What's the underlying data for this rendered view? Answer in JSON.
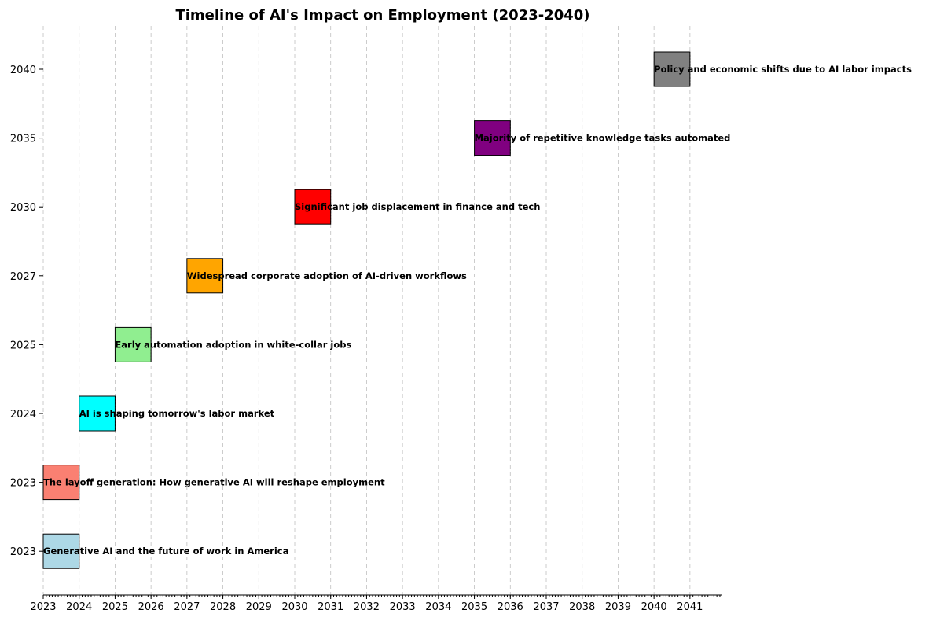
{
  "chart_data": {
    "type": "timeline",
    "title": "Timeline of AI's Impact on Employment (2023-2040)",
    "xlabel": "",
    "ylabel": "",
    "xlim": [
      2023,
      2041.9
    ],
    "x_ticks": [
      2023,
      2024,
      2025,
      2026,
      2027,
      2028,
      2029,
      2030,
      2031,
      2032,
      2033,
      2034,
      2035,
      2036,
      2037,
      2038,
      2039,
      2040,
      2041
    ],
    "minor_ticks_per_year": 12,
    "grid": "vertical-dashed",
    "events": [
      {
        "year": 2023,
        "label": "Generative AI and the future of work in America",
        "color": "#add8e6"
      },
      {
        "year": 2023,
        "label": "The layoff generation: How generative AI will reshape employment",
        "color": "#fa8072"
      },
      {
        "year": 2024,
        "label": "AI is shaping tomorrow's labor market",
        "color": "#00ffff"
      },
      {
        "year": 2025,
        "label": "Early automation adoption in white-collar jobs",
        "color": "#90ee90"
      },
      {
        "year": 2027,
        "label": "Widespread corporate adoption of AI-driven workflows",
        "color": "#ffa500"
      },
      {
        "year": 2030,
        "label": "Significant job displacement in finance and tech",
        "color": "#ff0000"
      },
      {
        "year": 2035,
        "label": "Majority of repetitive knowledge tasks automated",
        "color": "#800080"
      },
      {
        "year": 2040,
        "label": "Policy and economic shifts due to AI labor impacts",
        "color": "#808080"
      }
    ]
  }
}
